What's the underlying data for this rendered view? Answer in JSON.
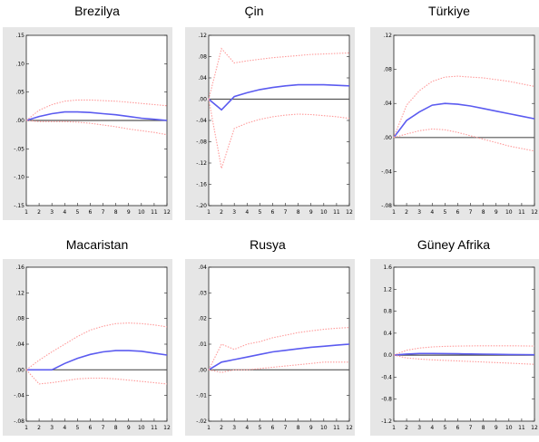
{
  "colors": {
    "response": "#5b5bf0",
    "band": "#ff9a9a",
    "zero": "#555555",
    "panel_bg": "#e6e6e6"
  },
  "chart_data": [
    {
      "type": "line",
      "title": "Brezilya",
      "x": [
        1,
        2,
        3,
        4,
        5,
        6,
        7,
        8,
        9,
        10,
        11,
        12
      ],
      "ylim": [
        -0.15,
        0.15
      ],
      "yticks": [
        ".15",
        ".10",
        ".05",
        ".00",
        "-.05",
        "-.10",
        "-.15"
      ],
      "ytick_values": [
        0.15,
        0.1,
        0.05,
        0.0,
        -0.05,
        -0.1,
        -0.15
      ],
      "grid": false,
      "series": [
        {
          "role": "response",
          "values": [
            0.0,
            0.007,
            0.012,
            0.015,
            0.015,
            0.014,
            0.012,
            0.01,
            0.007,
            0.004,
            0.002,
            0.0
          ]
        },
        {
          "role": "upper",
          "values": [
            0.0,
            0.018,
            0.028,
            0.034,
            0.036,
            0.036,
            0.035,
            0.034,
            0.032,
            0.03,
            0.028,
            0.026
          ]
        },
        {
          "role": "lower",
          "values": [
            0.0,
            -0.002,
            -0.002,
            -0.002,
            -0.003,
            -0.005,
            -0.008,
            -0.011,
            -0.015,
            -0.018,
            -0.021,
            -0.025
          ]
        }
      ]
    },
    {
      "type": "line",
      "title": "Çin",
      "x": [
        1,
        2,
        3,
        4,
        5,
        6,
        7,
        8,
        9,
        10,
        11,
        12
      ],
      "ylim": [
        -0.2,
        0.12
      ],
      "yticks": [
        ".12",
        ".08",
        ".04",
        ".00",
        "-.04",
        "-.08",
        "-.12",
        "-.16",
        "-.20"
      ],
      "ytick_values": [
        0.12,
        0.08,
        0.04,
        0.0,
        -0.04,
        -0.08,
        -0.12,
        -0.16,
        -0.2
      ],
      "grid": false,
      "series": [
        {
          "role": "response",
          "values": [
            0.0,
            -0.02,
            0.005,
            0.012,
            0.018,
            0.022,
            0.025,
            0.027,
            0.027,
            0.027,
            0.026,
            0.025
          ]
        },
        {
          "role": "upper",
          "values": [
            0.0,
            0.095,
            0.068,
            0.072,
            0.075,
            0.078,
            0.08,
            0.082,
            0.084,
            0.085,
            0.086,
            0.087
          ]
        },
        {
          "role": "lower",
          "values": [
            0.0,
            -0.13,
            -0.055,
            -0.045,
            -0.038,
            -0.033,
            -0.03,
            -0.028,
            -0.029,
            -0.031,
            -0.033,
            -0.036
          ]
        }
      ]
    },
    {
      "type": "line",
      "title": "Türkiye",
      "x": [
        1,
        2,
        3,
        4,
        5,
        6,
        7,
        8,
        9,
        10,
        11,
        12
      ],
      "ylim": [
        -0.08,
        0.12
      ],
      "yticks": [
        ".12",
        ".08",
        ".04",
        ".00",
        "-.04",
        "-.08"
      ],
      "ytick_values": [
        0.12,
        0.08,
        0.04,
        0.0,
        -0.04,
        -0.08
      ],
      "grid": false,
      "series": [
        {
          "role": "response",
          "values": [
            0.0,
            0.02,
            0.03,
            0.038,
            0.04,
            0.039,
            0.037,
            0.034,
            0.031,
            0.028,
            0.025,
            0.022
          ]
        },
        {
          "role": "upper",
          "values": [
            0.0,
            0.038,
            0.055,
            0.066,
            0.071,
            0.072,
            0.071,
            0.07,
            0.068,
            0.066,
            0.063,
            0.06
          ]
        },
        {
          "role": "lower",
          "values": [
            0.0,
            0.004,
            0.008,
            0.01,
            0.009,
            0.006,
            0.002,
            -0.002,
            -0.006,
            -0.01,
            -0.013,
            -0.016
          ]
        }
      ]
    },
    {
      "type": "line",
      "title": "Macaristan",
      "x": [
        1,
        2,
        3,
        4,
        5,
        6,
        7,
        8,
        9,
        10,
        11,
        12
      ],
      "ylim": [
        -0.08,
        0.16
      ],
      "yticks": [
        ".16",
        ".12",
        ".08",
        ".04",
        ".00",
        "-.04",
        "-.08"
      ],
      "ytick_values": [
        0.16,
        0.12,
        0.08,
        0.04,
        0.0,
        -0.04,
        -0.08
      ],
      "grid": false,
      "series": [
        {
          "role": "response",
          "values": [
            0.0,
            0.0,
            0.0,
            0.01,
            0.018,
            0.024,
            0.028,
            0.03,
            0.03,
            0.029,
            0.026,
            0.023
          ]
        },
        {
          "role": "upper",
          "values": [
            0.0,
            0.015,
            0.028,
            0.04,
            0.052,
            0.062,
            0.068,
            0.072,
            0.073,
            0.072,
            0.07,
            0.067
          ]
        },
        {
          "role": "lower",
          "values": [
            0.0,
            -0.022,
            -0.02,
            -0.017,
            -0.014,
            -0.013,
            -0.013,
            -0.014,
            -0.016,
            -0.018,
            -0.02,
            -0.022
          ]
        }
      ]
    },
    {
      "type": "line",
      "title": "Rusya",
      "x": [
        1,
        2,
        3,
        4,
        5,
        6,
        7,
        8,
        9,
        10,
        11,
        12
      ],
      "ylim": [
        -0.02,
        0.04
      ],
      "yticks": [
        ".04",
        ".03",
        ".02",
        ".01",
        ".00",
        "-.01",
        "-.02"
      ],
      "ytick_values": [
        0.04,
        0.03,
        0.02,
        0.01,
        0.0,
        -0.01,
        -0.02
      ],
      "grid": false,
      "series": [
        {
          "role": "response",
          "values": [
            0.0,
            0.003,
            0.004,
            0.005,
            0.006,
            0.007,
            0.0076,
            0.0082,
            0.0088,
            0.0092,
            0.0096,
            0.01
          ]
        },
        {
          "role": "upper",
          "values": [
            0.0,
            0.01,
            0.008,
            0.01,
            0.011,
            0.0125,
            0.0135,
            0.0145,
            0.0152,
            0.0158,
            0.0162,
            0.0165
          ]
        },
        {
          "role": "lower",
          "values": [
            0.0,
            -0.001,
            0.0,
            0.0,
            0.0005,
            0.001,
            0.0015,
            0.002,
            0.0025,
            0.003,
            0.003,
            0.003
          ]
        }
      ]
    },
    {
      "type": "line",
      "title": "Güney Afrika",
      "x": [
        1,
        2,
        3,
        4,
        5,
        6,
        7,
        8,
        9,
        10,
        11,
        12
      ],
      "ylim": [
        -1.2,
        1.6
      ],
      "yticks": [
        "1.6",
        "1.2",
        "0.8",
        "0.4",
        "0.0",
        "-0.4",
        "-0.8",
        "-1.2"
      ],
      "ytick_values": [
        1.6,
        1.2,
        0.8,
        0.4,
        0.0,
        -0.4,
        -0.8,
        -1.2
      ],
      "grid": false,
      "series": [
        {
          "role": "response",
          "values": [
            0.0,
            0.02,
            0.03,
            0.03,
            0.028,
            0.025,
            0.022,
            0.018,
            0.015,
            0.012,
            0.01,
            0.008
          ]
        },
        {
          "role": "upper",
          "values": [
            0.0,
            0.09,
            0.13,
            0.15,
            0.16,
            0.165,
            0.168,
            0.17,
            0.17,
            0.17,
            0.168,
            0.165
          ]
        },
        {
          "role": "lower",
          "values": [
            0.0,
            -0.05,
            -0.07,
            -0.085,
            -0.095,
            -0.105,
            -0.115,
            -0.125,
            -0.135,
            -0.145,
            -0.155,
            -0.165
          ]
        }
      ]
    }
  ]
}
